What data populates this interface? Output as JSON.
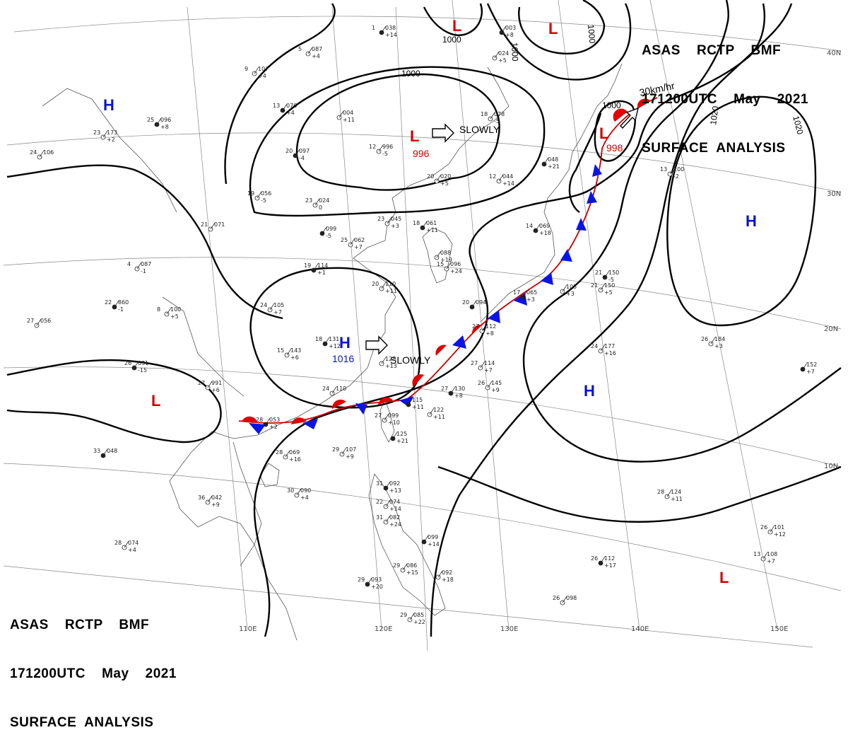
{
  "header_top": {
    "line1": "ASAS    RCTP    BMF",
    "line2": "171200UTC    May    2021",
    "line3": "SURFACE  ANALYSIS"
  },
  "header_bottom": {
    "line1": "ASAS    RCTP    BMF",
    "line2": "171200UTC    May    2021",
    "line3": "SURFACE  ANALYSIS"
  },
  "longitudes": [
    "110E",
    "120E",
    "130E",
    "140E",
    "150E"
  ],
  "latitudes": [
    "40N",
    "30N",
    "20N",
    "10N"
  ],
  "isobar_labels": [
    {
      "id": "iso-1000-west",
      "text": "1000"
    },
    {
      "id": "iso-1000-north-a",
      "text": "1000"
    },
    {
      "id": "iso-1000-north-b",
      "text": "1000"
    },
    {
      "id": "iso-1000-north-c",
      "text": "1000"
    },
    {
      "id": "iso-1000-east",
      "text": "1000"
    },
    {
      "id": "iso-1020-a",
      "text": "1020"
    },
    {
      "id": "iso-1020-b",
      "text": "1020"
    }
  ],
  "pressure_systems": [
    {
      "id": "low-north-a",
      "type": "L",
      "color": "#d40000"
    },
    {
      "id": "low-north-b",
      "type": "L",
      "color": "#d40000"
    },
    {
      "id": "low-center",
      "type": "L",
      "color": "#d40000",
      "value": "996"
    },
    {
      "id": "low-japan",
      "type": "L",
      "color": "#d40000",
      "value": "998"
    },
    {
      "id": "low-west",
      "type": "L",
      "color": "#d40000"
    },
    {
      "id": "low-southeast",
      "type": "L",
      "color": "#d40000"
    },
    {
      "id": "high-northwest",
      "type": "H",
      "color": "#0a14c8"
    },
    {
      "id": "high-china",
      "type": "H",
      "color": "#0a14c8",
      "value": "1016"
    },
    {
      "id": "high-pacific-east",
      "type": "H",
      "color": "#0a14c8"
    },
    {
      "id": "high-pacific-center",
      "type": "H",
      "color": "#0a14c8"
    }
  ],
  "movement_labels": [
    {
      "id": "move-low-center",
      "text": "SLOWLY"
    },
    {
      "id": "move-high-china",
      "text": "SLOWLY"
    },
    {
      "id": "move-low-japan",
      "text": "30km/hr"
    }
  ],
  "stations": [
    {
      "n": "038",
      "t": "1",
      "c": "+14"
    },
    {
      "n": "087",
      "t": "5",
      "c": "+4"
    },
    {
      "n": "107",
      "t": "9",
      "c": "+4"
    },
    {
      "n": "076",
      "t": "13",
      "c": "+4"
    },
    {
      "n": "004",
      "t": "",
      "c": "+11"
    },
    {
      "n": "996",
      "t": "12",
      "c": "-5"
    },
    {
      "n": "097",
      "t": "20",
      "c": "-4"
    },
    {
      "n": "024",
      "t": "23",
      "c": "0"
    },
    {
      "n": "056",
      "t": "19",
      "c": "-5"
    },
    {
      "n": "099",
      "t": "",
      "c": "-5"
    },
    {
      "n": "062",
      "t": "25",
      "c": "+7"
    },
    {
      "n": "045",
      "t": "23",
      "c": "+3"
    },
    {
      "n": "061",
      "t": "18",
      "c": "+11"
    },
    {
      "n": "020",
      "t": "20",
      "c": "+5"
    },
    {
      "n": "044",
      "t": "12",
      "c": "+14"
    },
    {
      "n": "048",
      "t": "",
      "c": "+21"
    },
    {
      "n": "173",
      "t": "23",
      "c": "+2"
    },
    {
      "n": "106",
      "t": "24",
      "c": ""
    },
    {
      "n": "096",
      "t": "25",
      "c": "+8"
    },
    {
      "n": "071",
      "t": "21",
      "c": ""
    },
    {
      "n": "087",
      "t": "4",
      "c": "-1"
    },
    {
      "n": "860",
      "t": "22",
      "c": "-1"
    },
    {
      "n": "100",
      "t": "8",
      "c": "+5"
    },
    {
      "n": "056",
      "t": "27",
      "c": ""
    },
    {
      "n": "031",
      "t": "26",
      "c": "-15"
    },
    {
      "n": "991",
      "t": "27",
      "c": "+6"
    },
    {
      "n": "105",
      "t": "24",
      "c": "+7"
    },
    {
      "n": "114",
      "t": "19",
      "c": "+1"
    },
    {
      "n": "110",
      "t": "20",
      "c": "+11"
    },
    {
      "n": "143",
      "t": "15",
      "c": "+6"
    },
    {
      "n": "131",
      "t": "18",
      "c": "+12"
    },
    {
      "n": "128",
      "t": "",
      "c": "+13"
    },
    {
      "n": "110",
      "t": "24",
      "c": ""
    },
    {
      "n": "053",
      "t": "28",
      "c": "+2"
    },
    {
      "n": "069",
      "t": "28",
      "c": "+16"
    },
    {
      "n": "099",
      "t": "27",
      "c": "+10"
    },
    {
      "n": "125",
      "t": "",
      "c": "+21"
    },
    {
      "n": "107",
      "t": "29",
      "c": "+9"
    },
    {
      "n": "090",
      "t": "30",
      "c": "+4"
    },
    {
      "n": "048",
      "t": "33",
      "c": ""
    },
    {
      "n": "042",
      "t": "36",
      "c": "+9"
    },
    {
      "n": "074",
      "t": "28",
      "c": "+4"
    },
    {
      "n": "092",
      "t": "31",
      "c": "+13"
    },
    {
      "n": "074",
      "t": "22",
      "c": "+14"
    },
    {
      "n": "082",
      "t": "31",
      "c": "+24"
    },
    {
      "n": "099",
      "t": "",
      "c": "+14"
    },
    {
      "n": "086",
      "t": "29",
      "c": "+15"
    },
    {
      "n": "092",
      "t": "",
      "c": "+18"
    },
    {
      "n": "093",
      "t": "29",
      "c": "+20"
    },
    {
      "n": "085",
      "t": "29",
      "c": "+22"
    },
    {
      "n": "098",
      "t": "26",
      "c": ""
    },
    {
      "n": "112",
      "t": "26",
      "c": "+17"
    },
    {
      "n": "124",
      "t": "28",
      "c": "+11"
    },
    {
      "n": "101",
      "t": "26",
      "c": "+12"
    },
    {
      "n": "152",
      "t": "",
      "c": "+7"
    },
    {
      "n": "184",
      "t": "26",
      "c": "+3"
    },
    {
      "n": "177",
      "t": "24",
      "c": "+16"
    },
    {
      "n": "150",
      "t": "21",
      "c": "-5"
    },
    {
      "n": "150",
      "t": "21",
      "c": "+5"
    },
    {
      "n": "103",
      "t": "",
      "c": "+3"
    },
    {
      "n": "094",
      "t": "20",
      "c": ""
    },
    {
      "n": "112",
      "t": "27",
      "c": "+8"
    },
    {
      "n": "114",
      "t": "27",
      "c": "+7"
    },
    {
      "n": "130",
      "t": "27",
      "c": "+8"
    },
    {
      "n": "145",
      "t": "26",
      "c": "+9"
    },
    {
      "n": "122",
      "t": "",
      "c": "+11"
    },
    {
      "n": "115",
      "t": "",
      "c": "+11"
    },
    {
      "n": "096",
      "t": "15",
      "c": "+24"
    },
    {
      "n": "088",
      "t": "",
      "c": "+19"
    },
    {
      "n": "069",
      "t": "14",
      "c": "+18"
    },
    {
      "n": "100",
      "t": "13",
      "c": "-2"
    },
    {
      "n": "108",
      "t": "13",
      "c": "+7"
    },
    {
      "n": "065",
      "t": "17",
      "c": "+3"
    },
    {
      "n": "078",
      "t": "18",
      "c": "-5"
    },
    {
      "n": "024",
      "t": "",
      "c": "+5"
    },
    {
      "n": "003",
      "t": "",
      "c": "+8"
    }
  ]
}
